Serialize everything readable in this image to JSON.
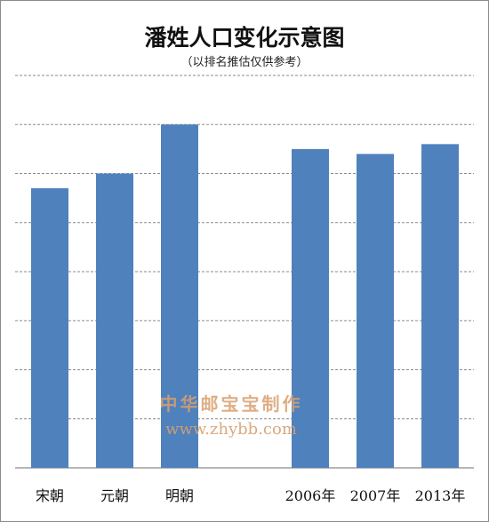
{
  "chart_data": {
    "type": "bar",
    "title": "潘姓人口变化示意图",
    "subtitle": "（以排名推估仅供参考）",
    "categories": [
      "宋朝",
      "元朝",
      "明朝",
      "2006年",
      "2007年",
      "2013年"
    ],
    "values": [
      5.7,
      6.0,
      7.0,
      6.5,
      6.4,
      6.6
    ],
    "ylim": [
      0,
      8
    ],
    "grid": true,
    "bar_color": "#4f81bd",
    "xlabel": "",
    "ylabel": ""
  },
  "watermark": {
    "line1": "中华邮宝宝制作",
    "line2": "www.zhybb.com"
  }
}
